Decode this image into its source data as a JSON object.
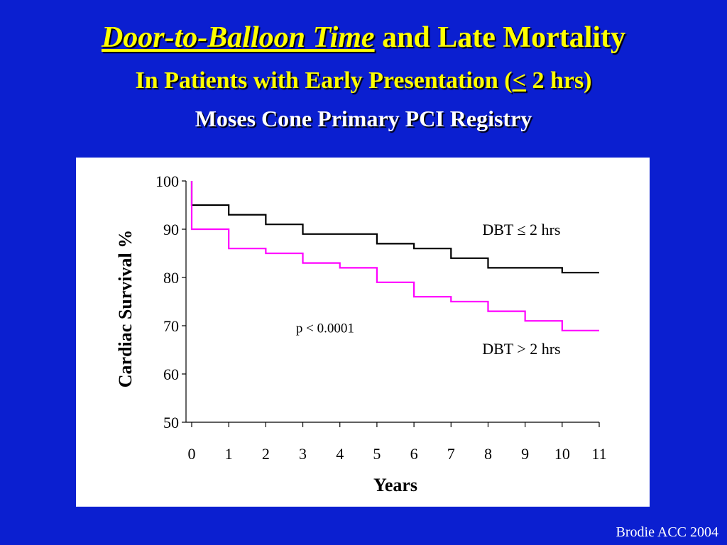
{
  "slide": {
    "title_italic": "Door-to-Balloon Time",
    "title_rest": " and Late Mortality",
    "subtitle_pre": "In Patients with Early Presentation (",
    "subtitle_symbol": "<",
    "subtitle_post": " 2 hrs)",
    "registry": "Moses Cone Primary PCI Registry",
    "credit": "Brodie ACC 2004"
  },
  "chart_data": {
    "type": "line",
    "step": true,
    "xlabel": "Years",
    "ylabel": "Cardiac Survival %",
    "xlim": [
      0,
      11
    ],
    "ylim": [
      50,
      100
    ],
    "xticks": [
      0,
      1,
      2,
      3,
      4,
      5,
      6,
      7,
      8,
      9,
      10,
      11
    ],
    "yticks": [
      50,
      60,
      70,
      80,
      90,
      100
    ],
    "grid": false,
    "series": [
      {
        "name": "DBT ≤ 2 hrs",
        "color": "#000000",
        "x": [
          0,
          1,
          2,
          3,
          4,
          5,
          6,
          7,
          8,
          9,
          10,
          11
        ],
        "y": [
          95,
          93,
          91,
          89,
          89,
          87,
          86,
          84,
          82,
          82,
          81,
          81
        ]
      },
      {
        "name": "DBT > 2 hrs",
        "color": "#ff00ff",
        "x": [
          0,
          1,
          2,
          3,
          4,
          5,
          6,
          7,
          8,
          9,
          10,
          11
        ],
        "y": [
          90,
          86,
          85,
          83,
          82,
          79,
          76,
          75,
          73,
          71,
          69,
          69
        ]
      }
    ],
    "annotations": [
      {
        "text": "p < 0.0001",
        "x": 3.6,
        "y": 69.5
      }
    ]
  }
}
